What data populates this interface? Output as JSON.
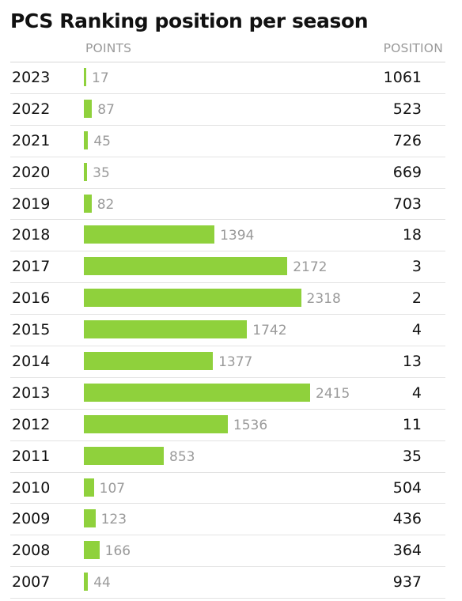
{
  "chart_data": {
    "type": "bar",
    "title": "PCS Ranking position per season",
    "columns": {
      "points": "POINTS",
      "position": "POSITION"
    },
    "rows": [
      {
        "year": "2023",
        "points": 17,
        "position": 1061
      },
      {
        "year": "2022",
        "points": 87,
        "position": 523
      },
      {
        "year": "2021",
        "points": 45,
        "position": 726
      },
      {
        "year": "2020",
        "points": 35,
        "position": 669
      },
      {
        "year": "2019",
        "points": 82,
        "position": 703
      },
      {
        "year": "2018",
        "points": 1394,
        "position": 18
      },
      {
        "year": "2017",
        "points": 2172,
        "position": 3
      },
      {
        "year": "2016",
        "points": 2318,
        "position": 2
      },
      {
        "year": "2015",
        "points": 1742,
        "position": 4
      },
      {
        "year": "2014",
        "points": 1377,
        "position": 13
      },
      {
        "year": "2013",
        "points": 2415,
        "position": 4
      },
      {
        "year": "2012",
        "points": 1536,
        "position": 11
      },
      {
        "year": "2011",
        "points": 853,
        "position": 35
      },
      {
        "year": "2010",
        "points": 107,
        "position": 504
      },
      {
        "year": "2009",
        "points": 123,
        "position": 436
      },
      {
        "year": "2008",
        "points": 166,
        "position": 364
      },
      {
        "year": "2007",
        "points": 44,
        "position": 937
      }
    ],
    "bar_color": "#8fd13c"
  }
}
